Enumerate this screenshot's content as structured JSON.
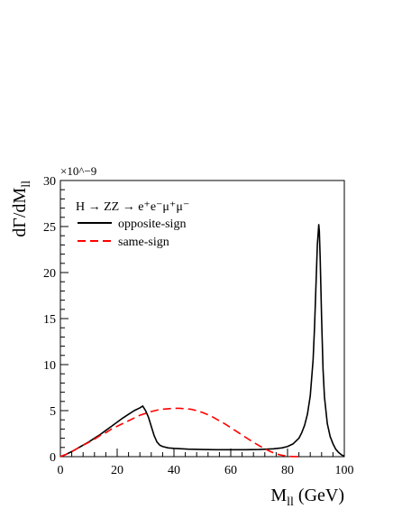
{
  "chart_data": {
    "type": "line",
    "title": "",
    "xlabel": "M_ll (GeV)",
    "ylabel": "dΓ/dM_ll",
    "y_multiplier": "×10^−9",
    "xlim": [
      0,
      100
    ],
    "ylim": [
      0,
      30
    ],
    "x_ticks": [
      0,
      20,
      40,
      60,
      80,
      100
    ],
    "y_ticks": [
      0,
      5,
      10,
      15,
      20,
      25,
      30
    ],
    "grid": false,
    "legend": {
      "placement": "top-left",
      "header": "H → ZZ → e⁺e⁻μ⁺μ⁻"
    },
    "series": [
      {
        "name": "opposite-sign",
        "color": "#000000",
        "dash": "solid",
        "x": [
          0,
          2,
          4,
          6,
          8,
          10,
          12,
          14,
          16,
          18,
          20,
          22,
          24,
          26,
          28,
          29,
          30,
          31,
          32,
          33,
          34,
          35,
          36,
          38,
          40,
          45,
          50,
          55,
          60,
          65,
          70,
          75,
          78,
          80,
          82,
          84,
          85,
          86,
          87,
          88,
          89,
          89.5,
          90,
          90.5,
          91,
          91.2,
          91.5,
          92,
          92.5,
          93,
          94,
          95,
          96,
          97,
          98,
          99,
          100
        ],
        "y": [
          0,
          0.25,
          0.55,
          0.9,
          1.25,
          1.6,
          2.0,
          2.4,
          2.85,
          3.3,
          3.75,
          4.2,
          4.6,
          5.0,
          5.3,
          5.5,
          5.0,
          4.3,
          3.3,
          2.3,
          1.6,
          1.25,
          1.1,
          0.95,
          0.9,
          0.82,
          0.78,
          0.75,
          0.75,
          0.75,
          0.78,
          0.85,
          0.95,
          1.1,
          1.4,
          2.0,
          2.6,
          3.4,
          4.6,
          6.6,
          10.5,
          14.0,
          18.5,
          23.0,
          25.2,
          24.5,
          21.5,
          15.0,
          9.5,
          6.5,
          3.6,
          2.2,
          1.4,
          0.8,
          0.45,
          0.2,
          0.05
        ]
      },
      {
        "name": "same-sign",
        "color": "#ff0000",
        "dash": "dashed",
        "x": [
          0,
          2,
          4,
          6,
          8,
          10,
          12,
          14,
          16,
          18,
          20,
          22,
          24,
          26,
          28,
          30,
          32,
          34,
          36,
          38,
          40,
          42,
          44,
          46,
          48,
          50,
          52,
          54,
          56,
          58,
          60,
          62,
          64,
          66,
          68,
          70,
          72,
          74,
          76,
          78,
          80,
          82,
          84
        ],
        "y": [
          0,
          0.25,
          0.55,
          0.9,
          1.25,
          1.55,
          1.9,
          2.3,
          2.6,
          3.0,
          3.3,
          3.6,
          3.9,
          4.2,
          4.5,
          4.7,
          4.9,
          5.05,
          5.15,
          5.2,
          5.25,
          5.25,
          5.2,
          5.15,
          5.0,
          4.8,
          4.55,
          4.25,
          3.9,
          3.55,
          3.15,
          2.75,
          2.35,
          1.95,
          1.55,
          1.2,
          0.85,
          0.55,
          0.3,
          0.15,
          0.05,
          0.01,
          0
        ]
      }
    ]
  }
}
